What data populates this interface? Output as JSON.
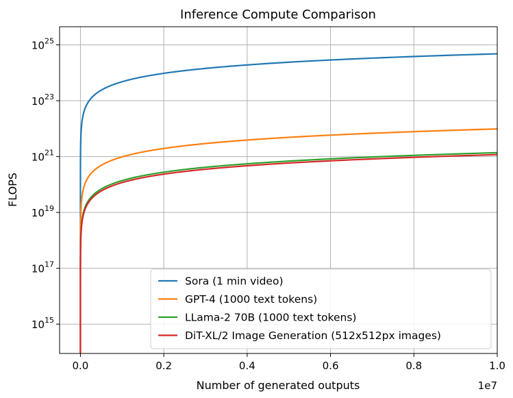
{
  "chart_data": {
    "type": "line",
    "title": "Inference Compute Comparison",
    "xlabel": "Number of generated outputs",
    "ylabel": "FLOPS",
    "x_offset_label": "1e7",
    "x_scale": "linear",
    "y_scale": "log",
    "xlim": [
      -0.05,
      1.0
    ],
    "ylim_exponent": [
      13.95,
      25.65
    ],
    "grid": true,
    "legend_position": "lower-right",
    "x_ticks": [
      {
        "value": 0.0,
        "label": "0.0"
      },
      {
        "value": 0.2,
        "label": "0.2"
      },
      {
        "value": 0.4,
        "label": "0.4"
      },
      {
        "value": 0.6,
        "label": "0.6"
      },
      {
        "value": 0.8,
        "label": "0.8"
      },
      {
        "value": 1.0,
        "label": "1.0"
      }
    ],
    "y_ticks": [
      {
        "exponent": 15,
        "base": "10",
        "sup": "15"
      },
      {
        "exponent": 17,
        "base": "10",
        "sup": "17"
      },
      {
        "exponent": 19,
        "base": "10",
        "sup": "19"
      },
      {
        "exponent": 21,
        "base": "10",
        "sup": "21"
      },
      {
        "exponent": 23,
        "base": "10",
        "sup": "23"
      },
      {
        "exponent": 25,
        "base": "10",
        "sup": "25"
      }
    ],
    "x_units_note": "x values in units of 1e7 outputs; curves are y = k * x",
    "series": [
      {
        "name": "Sora (1 min video)",
        "color": "#1f77b4",
        "log10_flops_per_output": 17.68,
        "start_x": 1e-08
      },
      {
        "name": "GPT-4 (1000 text tokens)",
        "color": "#ff7f0e",
        "log10_flops_per_output": 14.99,
        "start_x": 1e-08
      },
      {
        "name": "LLama-2 70B (1000 text tokens)",
        "color": "#2ca02c",
        "log10_flops_per_output": 14.14,
        "start_x": 1e-08
      },
      {
        "name": "DiT-XL/2 Image Generation (512x512px images)",
        "color": "#d62728",
        "log10_flops_per_output": 14.07,
        "start_x": 1e-08
      }
    ]
  }
}
